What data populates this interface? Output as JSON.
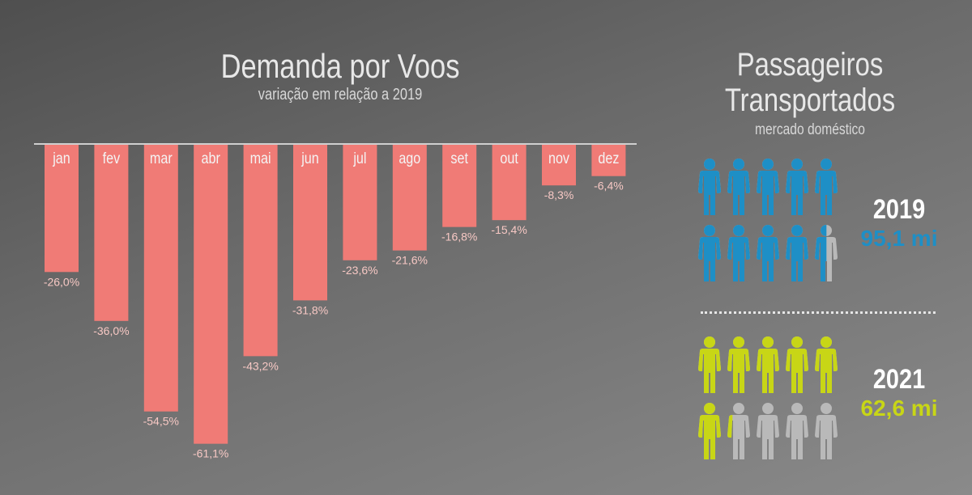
{
  "left_panel": {
    "title": "Demanda por Voos",
    "subtitle": "variação em relação a 2019"
  },
  "right_panel": {
    "title_line1": "Passageiros",
    "title_line2": "Transportados",
    "subtitle": "mercado doméstico",
    "groups": [
      {
        "year": "2019",
        "value_label": "95,1 mi",
        "value": 95.1,
        "icon": "person-icon",
        "color": "#1e8fc6"
      },
      {
        "year": "2021",
        "value_label": "62,6 mi",
        "value": 62.6,
        "icon": "person-icon",
        "color": "#c8d616"
      }
    ],
    "icon_unit_value": 10,
    "empty_icon_color": "#b9b9b9"
  },
  "chart_data": {
    "type": "bar",
    "title": "Demanda por Voos",
    "subtitle": "variação em relação a 2019",
    "categories": [
      "jan",
      "fev",
      "mar",
      "abr",
      "mai",
      "jun",
      "jul",
      "ago",
      "set",
      "out",
      "nov",
      "dez"
    ],
    "values": [
      -26.0,
      -36.0,
      -54.5,
      -61.1,
      -43.2,
      -31.8,
      -23.6,
      -21.6,
      -16.8,
      -15.4,
      -8.3,
      -6.4
    ],
    "data_labels": [
      "-26,0%",
      "-36,0%",
      "-54,5%",
      "-61,1%",
      "-43,2%",
      "-31,8%",
      "-23,6%",
      "-21,6%",
      "-16,8%",
      "-15,4%",
      "-8,3%",
      "-6,4%"
    ],
    "ylim": [
      -65,
      0
    ],
    "grid": false,
    "bar_color": "#f07b76"
  }
}
